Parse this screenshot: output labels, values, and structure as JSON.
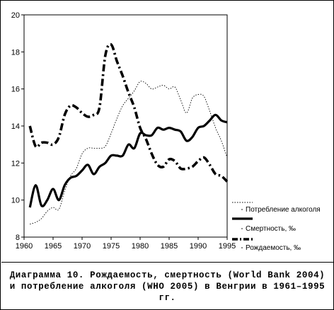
{
  "caption": "Диаграмма 10. Рождаемость, смертность (World Bank 2004) и потребление алкоголя (WHO 2005) в Венгрии в 1961–1995 гг.",
  "chart_data": {
    "type": "line",
    "xlim": [
      1960,
      1995
    ],
    "ylim": [
      8,
      20
    ],
    "x_ticks": [
      1960,
      1965,
      1970,
      1975,
      1980,
      1985,
      1990,
      1995
    ],
    "y_ticks": [
      8,
      10,
      12,
      14,
      16,
      18,
      20
    ],
    "x_tick_labels": [
      "1960",
      "1965",
      "1970",
      "1975",
      "1980",
      "1985",
      "1990",
      "1995"
    ],
    "y_tick_labels": [
      "8",
      "10",
      "12",
      "14",
      "16",
      "18",
      "20"
    ],
    "grid": false,
    "legend_position": "bottom-right",
    "series": [
      {
        "name": "Потребление алкоголя",
        "style": "dotted",
        "x": [
          1961,
          1962,
          1963,
          1964,
          1965,
          1966,
          1967,
          1968,
          1969,
          1970,
          1971,
          1972,
          1973,
          1974,
          1975,
          1976,
          1977,
          1978,
          1979,
          1980,
          1981,
          1982,
          1983,
          1984,
          1985,
          1986,
          1987,
          1988,
          1989,
          1990,
          1991,
          1992,
          1993,
          1994,
          1995
        ],
        "values": [
          8.7,
          8.8,
          9.0,
          9.4,
          9.6,
          9.5,
          10.5,
          11.3,
          11.7,
          12.5,
          12.8,
          12.8,
          12.8,
          12.9,
          13.6,
          14.4,
          15.1,
          15.5,
          15.9,
          16.4,
          16.3,
          16.0,
          16.1,
          16.2,
          16.0,
          16.1,
          15.4,
          14.7,
          15.5,
          15.7,
          15.6,
          14.8,
          13.9,
          13.2,
          12.3
        ]
      },
      {
        "name": "Смертность, ‰",
        "style": "solid",
        "x": [
          1961,
          1962,
          1963,
          1964,
          1965,
          1966,
          1967,
          1968,
          1969,
          1970,
          1971,
          1972,
          1973,
          1974,
          1975,
          1976,
          1977,
          1978,
          1979,
          1980,
          1981,
          1982,
          1983,
          1984,
          1985,
          1986,
          1987,
          1988,
          1989,
          1990,
          1991,
          1992,
          1993,
          1994,
          1995
        ],
        "values": [
          9.6,
          10.8,
          9.7,
          10.0,
          10.6,
          10.0,
          10.8,
          11.2,
          11.3,
          11.6,
          11.9,
          11.4,
          11.8,
          12.0,
          12.4,
          12.4,
          12.4,
          13.0,
          12.8,
          13.6,
          13.5,
          13.5,
          13.9,
          13.8,
          13.9,
          13.8,
          13.7,
          13.2,
          13.4,
          13.9,
          14.0,
          14.3,
          14.6,
          14.3,
          14.2
        ]
      },
      {
        "name": "Рождаемость, ‰",
        "style": "dashdot",
        "x": [
          1961,
          1962,
          1963,
          1964,
          1965,
          1966,
          1967,
          1968,
          1969,
          1970,
          1971,
          1972,
          1973,
          1974,
          1975,
          1976,
          1977,
          1978,
          1979,
          1980,
          1981,
          1982,
          1983,
          1984,
          1985,
          1986,
          1987,
          1988,
          1989,
          1990,
          1991,
          1992,
          1993,
          1994,
          1995
        ],
        "values": [
          14.0,
          12.9,
          13.1,
          13.1,
          13.0,
          13.4,
          14.6,
          15.1,
          15.0,
          14.7,
          14.5,
          14.6,
          15.0,
          17.8,
          18.4,
          17.5,
          16.7,
          15.8,
          15.0,
          13.9,
          13.3,
          12.5,
          11.9,
          11.8,
          12.2,
          12.1,
          11.7,
          11.7,
          11.8,
          12.1,
          12.3,
          11.9,
          11.4,
          11.3,
          11.0
        ]
      }
    ]
  }
}
